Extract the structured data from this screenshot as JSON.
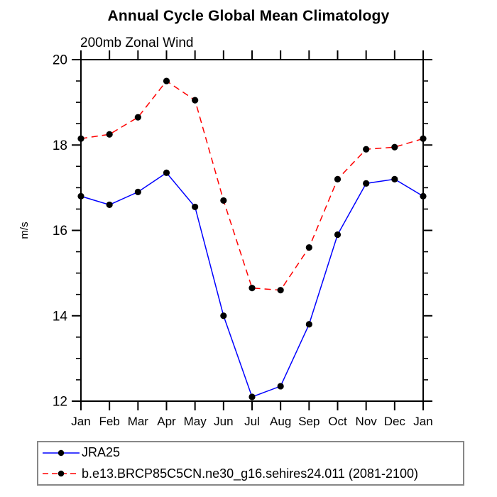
{
  "header": {
    "title": "Annual Cycle Global Mean Climatology",
    "subtitle": "200mb Zonal Wind"
  },
  "chart_data": {
    "type": "line",
    "title": "Annual Cycle Global Mean Climatology",
    "subtitle": "200mb Zonal Wind",
    "xlabel": "",
    "ylabel": "m/s",
    "ylim": [
      12,
      20
    ],
    "y_major_ticks": [
      12,
      14,
      16,
      18,
      20
    ],
    "y_minor_step": 0.5,
    "grid": false,
    "legend_position": "bottom-left",
    "categories": [
      "Jan",
      "Feb",
      "Mar",
      "Apr",
      "May",
      "Jun",
      "Jul",
      "Aug",
      "Sep",
      "Oct",
      "Nov",
      "Dec",
      "Jan"
    ],
    "series": [
      {
        "name": "JRA25",
        "color": "#0000ff",
        "line_style": "solid",
        "marker": "circle",
        "marker_color": "#000000",
        "values": [
          16.8,
          16.6,
          16.9,
          17.35,
          16.55,
          14.0,
          12.1,
          12.35,
          13.8,
          15.9,
          17.1,
          17.2,
          16.8
        ]
      },
      {
        "name": "b.e13.BRCP85C5CN.ne30_g16.sehires24.011 (2081-2100)",
        "color": "#ff0000",
        "line_style": "dashed",
        "marker": "circle",
        "marker_color": "#000000",
        "values": [
          18.15,
          18.25,
          18.65,
          19.5,
          19.05,
          16.7,
          14.65,
          14.6,
          15.6,
          17.2,
          17.9,
          17.95,
          18.15
        ]
      }
    ],
    "axis_color": "#000000"
  }
}
